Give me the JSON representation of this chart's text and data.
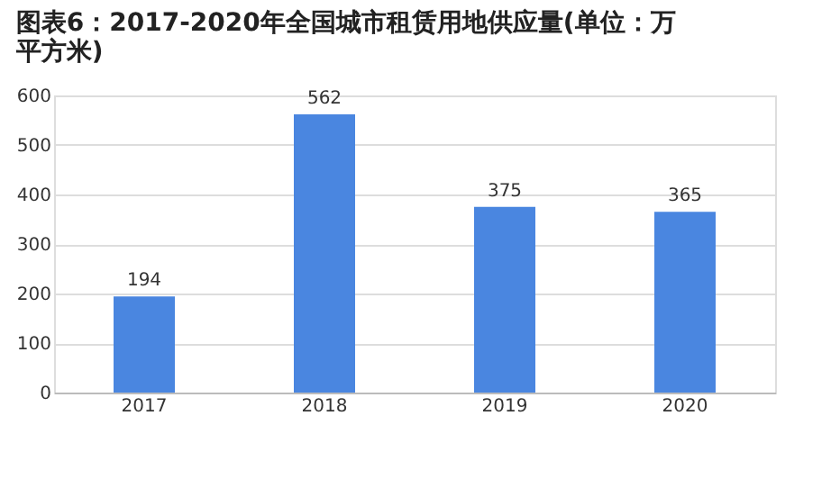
{
  "chart_data": {
    "type": "bar",
    "title": "图表6：2017-2020年全国城市租赁用地供应量(单位：万平方米)",
    "categories": [
      "2017",
      "2018",
      "2019",
      "2020"
    ],
    "values": [
      194,
      562,
      375,
      365
    ],
    "color": "#4a86e0",
    "ylim": [
      0,
      600
    ],
    "yticks": [
      0,
      100,
      200,
      300,
      400,
      500,
      600
    ],
    "grid": "y",
    "data_labels": true
  }
}
